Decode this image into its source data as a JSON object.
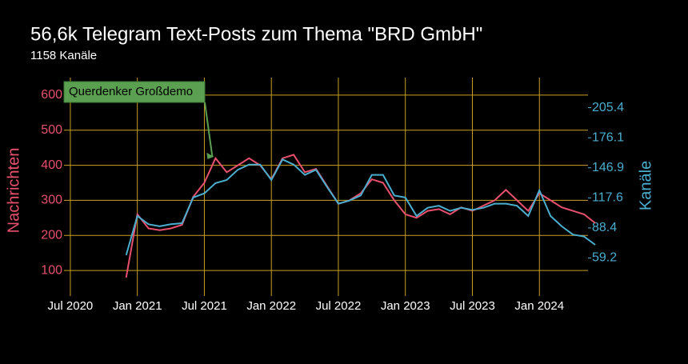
{
  "chart_data": {
    "type": "line",
    "title": "56,6k Telegram Text-Posts zum Thema \"BRD GmbH\"",
    "subtitle": "1158 Kanäle",
    "y_label": "Nachrichten",
    "y2_label": "Kanäle",
    "annotation": "Querdenker Großdemo",
    "annotation_x": "2021-08",
    "grid": true,
    "x": [
      "2020-12",
      "2021-01",
      "2021-02",
      "2021-03",
      "2021-04",
      "2021-05",
      "2021-06",
      "2021-07",
      "2021-08",
      "2021-09",
      "2021-10",
      "2021-11",
      "2021-12",
      "2022-01",
      "2022-02",
      "2022-03",
      "2022-04",
      "2022-05",
      "2022-06",
      "2022-07",
      "2022-08",
      "2022-09",
      "2022-10",
      "2022-11",
      "2022-12",
      "2023-01",
      "2023-02",
      "2023-03",
      "2023-04",
      "2023-05",
      "2023-06",
      "2023-07",
      "2023-08",
      "2023-09",
      "2023-10",
      "2023-11",
      "2023-12",
      "2024-01",
      "2024-02",
      "2024-03",
      "2024-04",
      "2024-05",
      "2024-06"
    ],
    "series": [
      {
        "name": "Nachrichten",
        "color": "#e8506e",
        "values": [
          80,
          260,
          220,
          215,
          220,
          230,
          310,
          350,
          420,
          380,
          400,
          420,
          400,
          360,
          420,
          430,
          380,
          390,
          340,
          290,
          300,
          320,
          360,
          350,
          300,
          260,
          250,
          270,
          275,
          260,
          280,
          270,
          285,
          300,
          330,
          300,
          270,
          320,
          300,
          280,
          270,
          260,
          235
        ]
      },
      {
        "name": "Kanäle",
        "color": "#4aaecf",
        "axis": "y2",
        "values": [
          62,
          100,
          92,
          90,
          92,
          93,
          118,
          122,
          132,
          135,
          145,
          150,
          150,
          135,
          155,
          150,
          140,
          145,
          128,
          112,
          115,
          120,
          140,
          140,
          120,
          118,
          100,
          108,
          110,
          105,
          108,
          106,
          108,
          112,
          112,
          110,
          100,
          125,
          100,
          90,
          82,
          80,
          72
        ]
      }
    ],
    "xlim": [
      "2020-05",
      "2024-07"
    ],
    "xticks": [
      {
        "value": "2020-07",
        "label": "Jul 2020"
      },
      {
        "value": "2021-01",
        "label": "Jan 2021"
      },
      {
        "value": "2021-07",
        "label": "Jul 2021"
      },
      {
        "value": "2022-01",
        "label": "Jan 2022"
      },
      {
        "value": "2022-07",
        "label": "Jul 2022"
      },
      {
        "value": "2023-01",
        "label": "Jan 2023"
      },
      {
        "value": "2023-07",
        "label": "Jul 2023"
      },
      {
        "value": "2024-01",
        "label": "Jan 2024"
      }
    ],
    "ylim": [
      50,
      650
    ],
    "yticks": [
      100,
      200,
      300,
      400,
      500,
      600
    ],
    "y2lim": [
      30,
      234.6
    ],
    "y2ticks": [
      59.2,
      88.4,
      117.6,
      146.9,
      176.1,
      205.4
    ]
  }
}
